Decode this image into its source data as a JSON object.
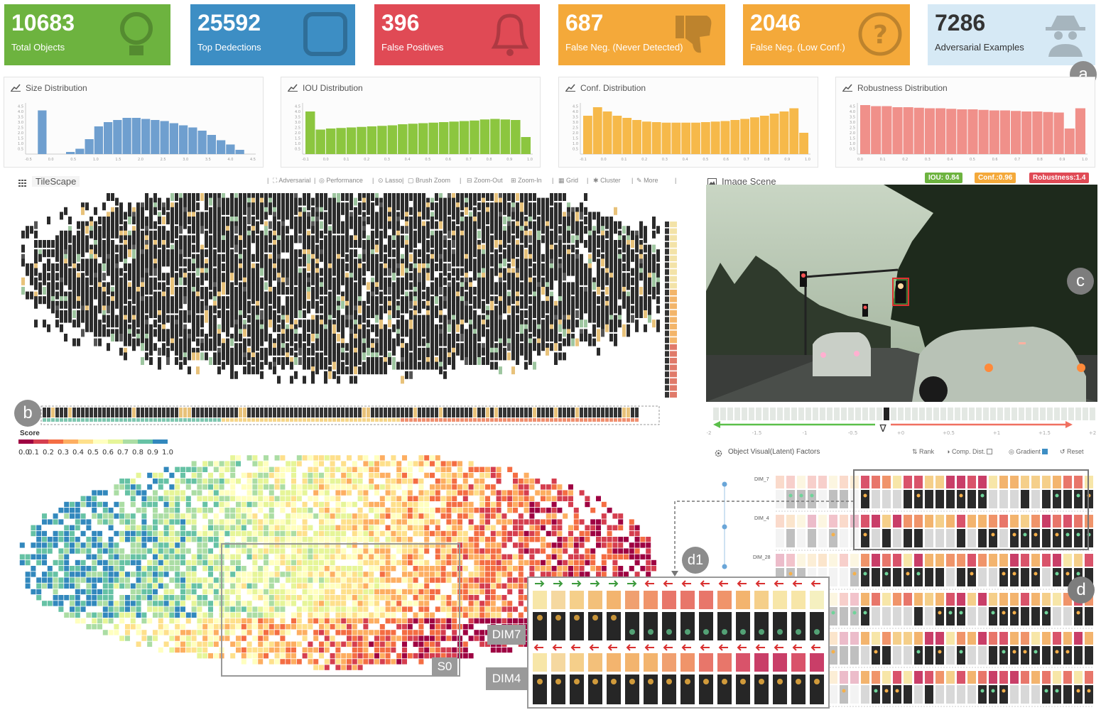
{
  "cards": [
    {
      "value": "10683",
      "label": "Total Objects",
      "color": "#6db33f",
      "icon": "lightbulb-icon"
    },
    {
      "value": "25592",
      "label": "Top Dedections",
      "color": "#3d8ec4",
      "icon": "square-icon"
    },
    {
      "value": "396",
      "label": "False Positives",
      "color": "#e04a55",
      "icon": "bell-icon"
    },
    {
      "value": "687",
      "label": "False Neg. (Never Detected)",
      "color": "#f4a93a",
      "icon": "thumbs-down-icon"
    },
    {
      "value": "2046",
      "label": "False Neg. (Low Conf.)",
      "color": "#f4a93a",
      "icon": "question-icon"
    },
    {
      "value": "7286",
      "label": "Adversarial Examples",
      "color": "#d6e9f5",
      "icon": "spy-icon"
    }
  ],
  "distributions": [
    {
      "title": "Size Distribution",
      "color": "#6f9fcf",
      "ticks": [
        "-0.5",
        "0.0",
        "0.5",
        "1.0",
        "1.5",
        "2.0",
        "2.5",
        "3.0",
        "3.5",
        "4.0",
        "4.5"
      ],
      "values": [
        0,
        4.1,
        0,
        0,
        0.2,
        0.5,
        1.4,
        2.6,
        3.0,
        3.2,
        3.4,
        3.4,
        3.3,
        3.2,
        3.1,
        2.9,
        2.7,
        2.5,
        2.2,
        1.8,
        1.3,
        0.9,
        0.4,
        0
      ]
    },
    {
      "title": "IOU Distribution",
      "color": "#8cc63f",
      "ticks": [
        "-0.1",
        "0.0",
        "0.1",
        "0.2",
        "0.3",
        "0.4",
        "0.5",
        "0.6",
        "0.7",
        "0.8",
        "0.9",
        "1.0"
      ],
      "values": [
        4.0,
        2.3,
        2.4,
        2.45,
        2.5,
        2.55,
        2.6,
        2.65,
        2.7,
        2.8,
        2.85,
        2.9,
        2.95,
        3.0,
        3.05,
        3.1,
        3.15,
        3.25,
        3.3,
        3.25,
        3.2,
        1.6
      ]
    },
    {
      "title": "Conf. Distribution",
      "color": "#f6b94a",
      "ticks": [
        "-0.1",
        "0.0",
        "0.1",
        "0.2",
        "0.3",
        "0.4",
        "0.5",
        "0.6",
        "0.7",
        "0.8",
        "0.9",
        "1.0"
      ],
      "values": [
        3.6,
        4.4,
        4.0,
        3.6,
        3.4,
        3.2,
        3.05,
        3.0,
        2.95,
        2.95,
        2.95,
        2.95,
        3.0,
        3.05,
        3.1,
        3.2,
        3.3,
        3.45,
        3.6,
        3.8,
        4.0,
        4.3,
        2.0
      ]
    },
    {
      "title": "Robustness Distribution",
      "color": "#f0908a",
      "ticks": [
        "0.0",
        "0.1",
        "0.2",
        "0.3",
        "0.4",
        "0.5",
        "0.6",
        "0.7",
        "0.8",
        "0.9",
        "1.0"
      ],
      "values": [
        4.6,
        4.5,
        4.5,
        4.4,
        4.4,
        4.35,
        4.3,
        4.3,
        4.25,
        4.2,
        4.2,
        4.15,
        4.1,
        4.1,
        4.05,
        4.0,
        4.0,
        3.95,
        3.9,
        2.4,
        4.3
      ]
    }
  ],
  "badges": {
    "a": "a",
    "b": "b",
    "c": "c",
    "d": "d",
    "d1": "d1"
  },
  "tilescape": {
    "title": "TileScape",
    "toolbar": [
      "Adversarial",
      "Performance",
      "Lasso",
      "Brush Zoom",
      "Zoom-Out",
      "Zoom-In",
      "Grid",
      "Cluster",
      "More"
    ],
    "score_title": "Score",
    "score_ticks": [
      "0.0",
      "0.1",
      "0.2",
      "0.3",
      "0.4",
      "0.5",
      "0.6",
      "0.7",
      "0.8",
      "0.9",
      "1.0"
    ]
  },
  "scene": {
    "title": "Image Scene",
    "iou": "IOU: 0.84",
    "conf": "Conf.:0.96",
    "robust": "Robustness:1.4",
    "axis_ticks": [
      "-2",
      "-1.5",
      "-1",
      "-0.5",
      "+0",
      "+0.5",
      "+1",
      "+1.5",
      "+2"
    ],
    "nabla": "∇"
  },
  "factors": {
    "title": "Object Visual(Latent) Factors",
    "rank": "Rank",
    "comp": "Comp. Dist.",
    "gradient": "Gradient",
    "reset": "Reset",
    "dims": [
      "DIM_7",
      "DIM_4",
      "DIM_28"
    ]
  },
  "tags": {
    "dim7": "DIM7",
    "dim4": "DIM4",
    "s0": "S0"
  },
  "colors": {
    "accent_green": "#6db33f",
    "accent_orange": "#f4a93a",
    "accent_red": "#e04a55"
  }
}
